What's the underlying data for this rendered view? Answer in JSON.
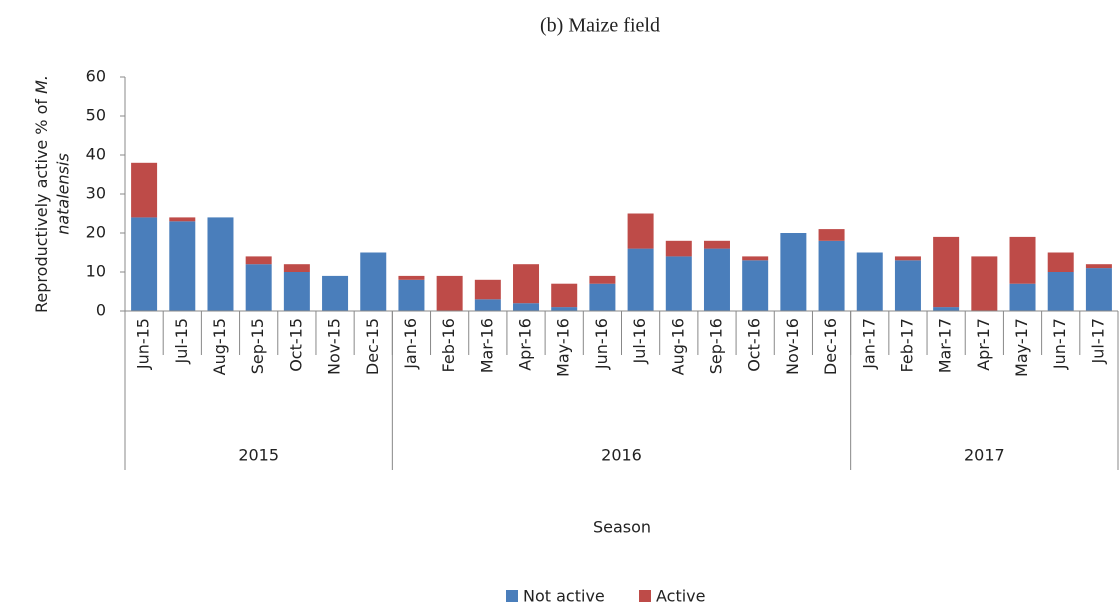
{
  "chart_data": {
    "type": "stacked_bar",
    "title": "(b)  Maize field",
    "ylabel": [
      "Reproductively active % of",
      "M.",
      "natalensis"
    ],
    "xlabel": "Season",
    "categories": [
      "Jun-15",
      "Jul-15",
      "Aug-15",
      "Sep-15",
      "Oct-15",
      "Nov-15",
      "Dec-15",
      "Jan-16",
      "Feb-16",
      "Mar-16",
      "Apr-16",
      "May-16",
      "Jun-16",
      "Jul-16",
      "Aug-16",
      "Sep-16",
      "Oct-16",
      "Nov-16",
      "Dec-16",
      "Jan-17",
      "Feb-17",
      "Mar-17",
      "Apr-17",
      "May-17",
      "Jun-17",
      "Jul-17"
    ],
    "groups": [
      "2015",
      "2016",
      "2017"
    ],
    "series": [
      {
        "name": "Not active",
        "color": "#4a7ebb",
        "values": [
          24,
          23,
          24,
          12,
          10,
          9,
          15,
          8,
          0,
          3,
          2,
          1,
          7,
          16,
          14,
          16,
          13,
          20,
          18,
          15,
          13,
          1,
          0,
          7,
          10,
          11
        ]
      },
      {
        "name": "Active",
        "color": "#be4b48",
        "values": [
          14,
          1,
          0,
          2,
          2,
          0,
          0,
          1,
          9,
          5,
          10,
          6,
          2,
          9,
          4,
          2,
          1,
          0,
          3,
          0,
          1,
          18,
          14,
          12,
          5,
          1
        ]
      }
    ],
    "ylim": [
      0,
      60
    ],
    "yticks": [
      0,
      10,
      20,
      30,
      40,
      50,
      60
    ],
    "legend": "bottom"
  }
}
